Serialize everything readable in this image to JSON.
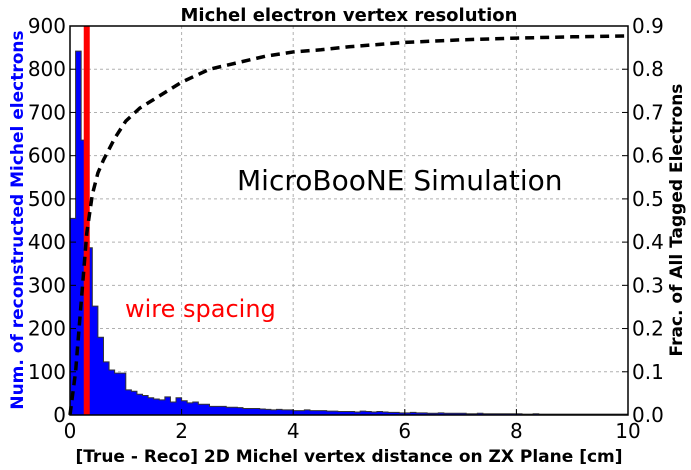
{
  "chart_data": {
    "type": "bar",
    "title": "Michel electron vertex resolution",
    "xlabel": "[True - Reco] 2D Michel vertex distance on ZX Plane [cm]",
    "ylabel": "Num. of reconstructed Michel electrons",
    "ylabel_right": "Frac. of All Tagged Electrons",
    "xlim": [
      0,
      10
    ],
    "ylim": [
      0,
      900
    ],
    "ylim_right": [
      0,
      0.9
    ],
    "xticks": [
      "0",
      "2",
      "4",
      "6",
      "8",
      "10"
    ],
    "yticks": [
      "0",
      "100",
      "200",
      "300",
      "400",
      "500",
      "600",
      "700",
      "800",
      "900"
    ],
    "yticks_right": [
      "0.0",
      "0.1",
      "0.2",
      "0.3",
      "0.4",
      "0.5",
      "0.6",
      "0.7",
      "0.8",
      "0.9"
    ],
    "grid": true,
    "bin_width": 0.1,
    "histogram": {
      "name": "Num. of reconstructed Michel electrons",
      "color": "#0000ff",
      "bin_start": 0,
      "values": [
        455,
        842,
        636,
        387,
        252,
        180,
        123,
        104,
        97,
        97,
        58,
        55,
        48,
        45,
        40,
        37,
        35,
        42,
        30,
        40,
        33,
        28,
        30,
        25,
        25,
        20,
        20,
        20,
        18,
        18,
        17,
        15,
        15,
        15,
        14,
        13,
        12,
        13,
        12,
        12,
        10,
        10,
        12,
        10,
        10,
        10,
        9,
        9,
        8,
        8,
        8,
        7,
        9,
        8,
        7,
        8,
        7,
        6,
        6,
        5,
        5,
        6,
        5,
        5,
        4,
        4,
        5,
        4,
        4,
        4,
        4,
        3,
        3,
        4,
        3,
        3,
        3,
        3,
        3,
        3,
        3,
        2,
        2,
        3,
        2,
        2,
        2,
        2,
        2,
        2,
        2,
        2,
        2,
        2,
        2,
        2,
        2,
        2,
        2,
        2
      ]
    },
    "cumulative": {
      "name": "Frac. of All Tagged Electrons",
      "style": "dashed",
      "color": "#000000",
      "x": [
        0.0,
        0.1,
        0.2,
        0.3,
        0.4,
        0.5,
        0.6,
        0.8,
        1.0,
        1.25,
        1.5,
        2.0,
        2.5,
        3.0,
        3.5,
        4.0,
        4.5,
        5.0,
        5.5,
        6.0,
        6.5,
        7.0,
        8.0,
        9.0,
        10.0
      ],
      "y": [
        0.0,
        0.1,
        0.26,
        0.42,
        0.51,
        0.56,
        0.59,
        0.64,
        0.68,
        0.71,
        0.73,
        0.77,
        0.8,
        0.815,
        0.83,
        0.84,
        0.845,
        0.852,
        0.857,
        0.862,
        0.865,
        0.868,
        0.872,
        0.875,
        0.877
      ]
    },
    "vline": {
      "x": 0.3,
      "color": "#ff0000",
      "label": "wire spacing"
    },
    "annotations": [
      {
        "text": "MicroBooNE Simulation",
        "x": 3.0,
        "y": 525
      },
      {
        "text": "wire spacing",
        "x": 1.0,
        "y": 235,
        "color": "#ff0000"
      }
    ]
  },
  "labels": {
    "title": "Michel electron vertex resolution",
    "xlabel": "[True - Reco] 2D Michel vertex distance on ZX Plane [cm]",
    "ylabel": "Num. of reconstructed Michel electrons",
    "ylabel_right": "Frac. of All Tagged Electrons",
    "sim": "MicroBooNE Simulation",
    "wire": "wire spacing"
  },
  "colors": {
    "hist": "#0000ff",
    "vline": "#ff0000",
    "ylabel": "#0000ff"
  }
}
